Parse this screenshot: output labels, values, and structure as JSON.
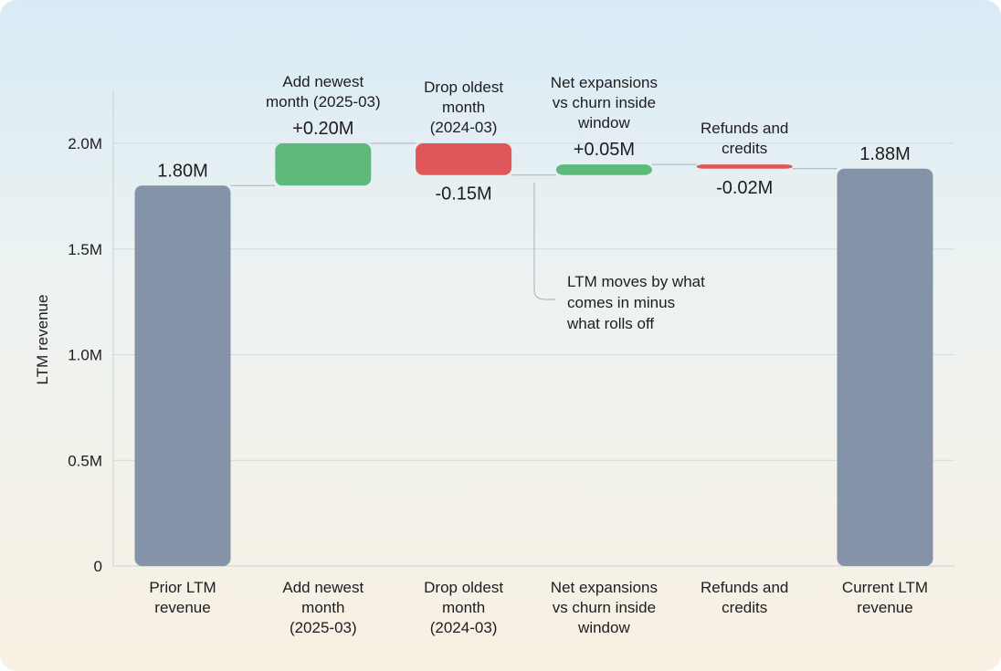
{
  "chart_data": {
    "type": "waterfall",
    "ylabel": "LTM revenue",
    "ylim": [
      0,
      2.2
    ],
    "yticks": [
      0,
      0.5,
      1.0,
      1.5,
      2.0
    ],
    "ytick_labels": [
      "0",
      "0.5M",
      "1.0M",
      "1.5M",
      "2.0M"
    ],
    "grid": true,
    "categories": [
      [
        "Prior LTM",
        "revenue"
      ],
      [
        "Add newest",
        "month",
        "(2025-03)"
      ],
      [
        "Drop oldest",
        "month",
        "(2024-03)"
      ],
      [
        "Net expansions",
        "vs churn inside",
        "window"
      ],
      [
        "Refunds and",
        "credits"
      ],
      [
        "Current LTM",
        "revenue"
      ]
    ],
    "steps": [
      {
        "kind": "total",
        "value": 1.8,
        "label": "1.80M"
      },
      {
        "kind": "delta",
        "value": 0.2,
        "label": "+0.20M",
        "title": [
          "Add newest",
          "month (2025-03)"
        ]
      },
      {
        "kind": "delta",
        "value": -0.15,
        "label": "-0.15M",
        "title": [
          "Drop oldest",
          "month",
          "(2024-03)"
        ]
      },
      {
        "kind": "delta",
        "value": 0.05,
        "label": "+0.05M",
        "title": [
          "Net expansions",
          "vs churn inside",
          "window"
        ]
      },
      {
        "kind": "delta",
        "value": -0.02,
        "label": "-0.02M",
        "title": [
          "Refunds and",
          "credits"
        ]
      },
      {
        "kind": "total",
        "value": 1.88,
        "label": "1.88M"
      }
    ],
    "annotation": [
      "LTM moves by what",
      "comes in minus",
      "what rolls off"
    ],
    "colors": {
      "total": "#8593a9",
      "increase": "#5dba7b",
      "decrease": "#e0575a",
      "grid": "#d3dade",
      "connector": "#a9b0b5"
    }
  }
}
